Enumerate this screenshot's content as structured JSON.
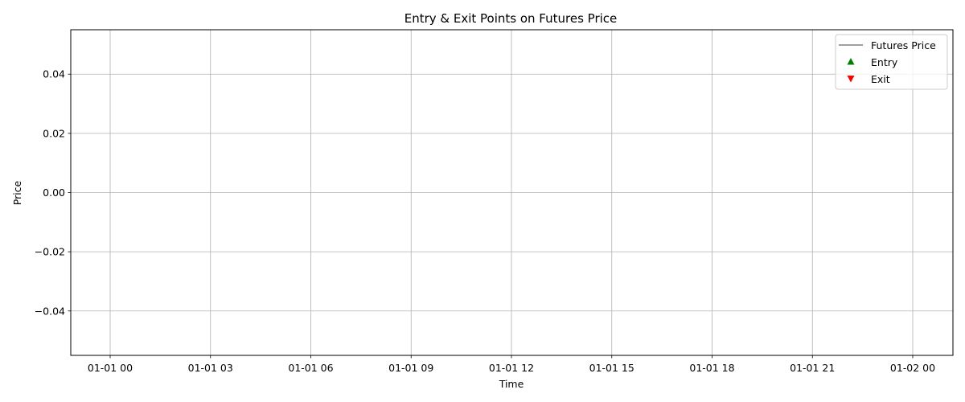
{
  "chart_data": {
    "type": "line",
    "title": "Entry & Exit Points on Futures Price",
    "xlabel": "Time",
    "ylabel": "Price",
    "x_ticks": [
      "01-01 00",
      "01-01 03",
      "01-01 06",
      "01-01 09",
      "01-01 12",
      "01-01 15",
      "01-01 18",
      "01-01 21",
      "01-02 00"
    ],
    "y_ticks": [
      0.04,
      0.02,
      0.0,
      -0.02,
      -0.04
    ],
    "y_tick_labels": [
      "0.04",
      "0.02",
      "0.00",
      "−0.02",
      "−0.04"
    ],
    "ylim": [
      -0.055,
      0.055
    ],
    "grid": true,
    "legend_position": "top-right",
    "series": [
      {
        "name": "Futures Price",
        "marker": "line",
        "color": "#808080",
        "points": []
      },
      {
        "name": "Entry",
        "marker": "triangle-up",
        "color": "#008000",
        "points": []
      },
      {
        "name": "Exit",
        "marker": "triangle-down",
        "color": "#ff0000",
        "points": []
      }
    ]
  }
}
